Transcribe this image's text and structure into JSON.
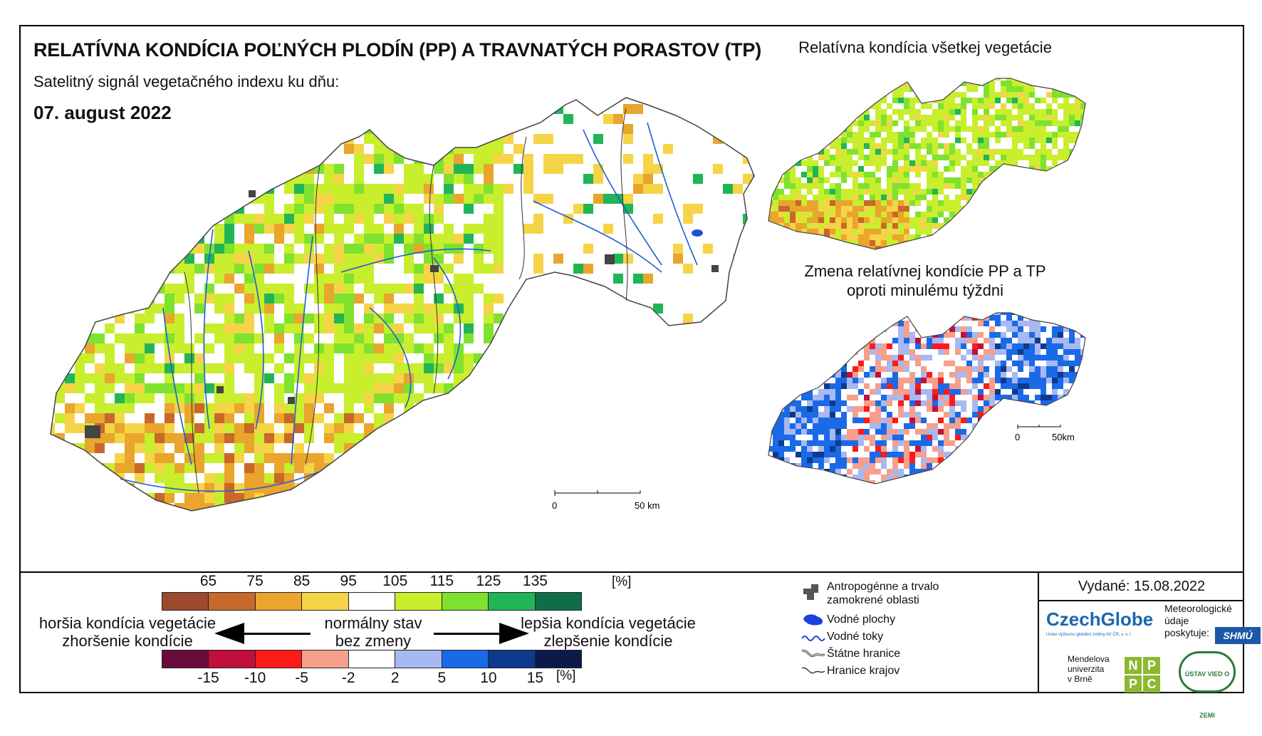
{
  "title": "RELATÍVNA KONDÍCIA POĽNÝCH PLODÍN (PP) A TRAVNATÝCH PORASTOV (TP)",
  "subtitle": "Satelitný signál vegetačného indexu ku dňu:",
  "date": "07. august 2022",
  "inset_top_title": "Relatívna kondícia všetkej vegetácie",
  "inset_bottom_title_line1": "Zmena relatívnej kondície PP a TP",
  "inset_bottom_title_line2": "oproti minulému týždni",
  "main_scale": {
    "zero": "0",
    "label": "50 km"
  },
  "inset_scale": {
    "zero": "0",
    "label": "50km"
  },
  "legend": {
    "condition_ticks": [
      "65",
      "75",
      "85",
      "95",
      "105",
      "115",
      "125",
      "135"
    ],
    "condition_unit": "[%]",
    "condition_colors": [
      "#9b4a2e",
      "#c8682a",
      "#e9a52c",
      "#f6d448",
      "#ffffff",
      "#c9ee2d",
      "#7fe22f",
      "#22b557",
      "#0f6e49"
    ],
    "change_ticks": [
      "-15",
      "-10",
      "-5",
      "-2",
      "2",
      "5",
      "10",
      "15"
    ],
    "change_unit": "[%]",
    "change_colors": [
      "#6b0a3c",
      "#c0103a",
      "#ff1a1a",
      "#f6a08c",
      "#ffffff",
      "#a8b8f0",
      "#1a6ae8",
      "#0d3a8c",
      "#0b1a4a"
    ],
    "worse_line1": "horšia kondícia vegetácie",
    "worse_line2": "zhoršenie kondície",
    "normal_line1": "normálny stav",
    "normal_line2": "bez zmeny",
    "better_line1": "lepšia kondícia vegetácie",
    "better_line2": "zlepšenie kondície"
  },
  "map_key": {
    "anthropogenic_line1": "Antropogénne a trvalo",
    "anthropogenic_line2": "zamokrené oblasti",
    "water_bodies": "Vodné plochy",
    "rivers": "Vodné toky",
    "state_border": "Štátne hranice",
    "region_border": "Hranice krajov"
  },
  "issued": "Vydané: 15.08.2022",
  "logos": {
    "czechglobe": "CzechGlobe",
    "czechglobe_sub": "Ústav výzkumu globální změny AV ČR, v. v. i.",
    "meteo_line1": "Meteorologické",
    "meteo_line2": "údaje",
    "meteo_line3": "poskytuje:",
    "shmu": "SHMÚ",
    "mendel_line1": "Mendelova",
    "mendel_line2": "univerzita",
    "mendel_line3": "v Brně",
    "nppc": [
      "N",
      "P",
      "P",
      "C"
    ],
    "uvz": "ÚSTAV VIED O ZEMI"
  }
}
